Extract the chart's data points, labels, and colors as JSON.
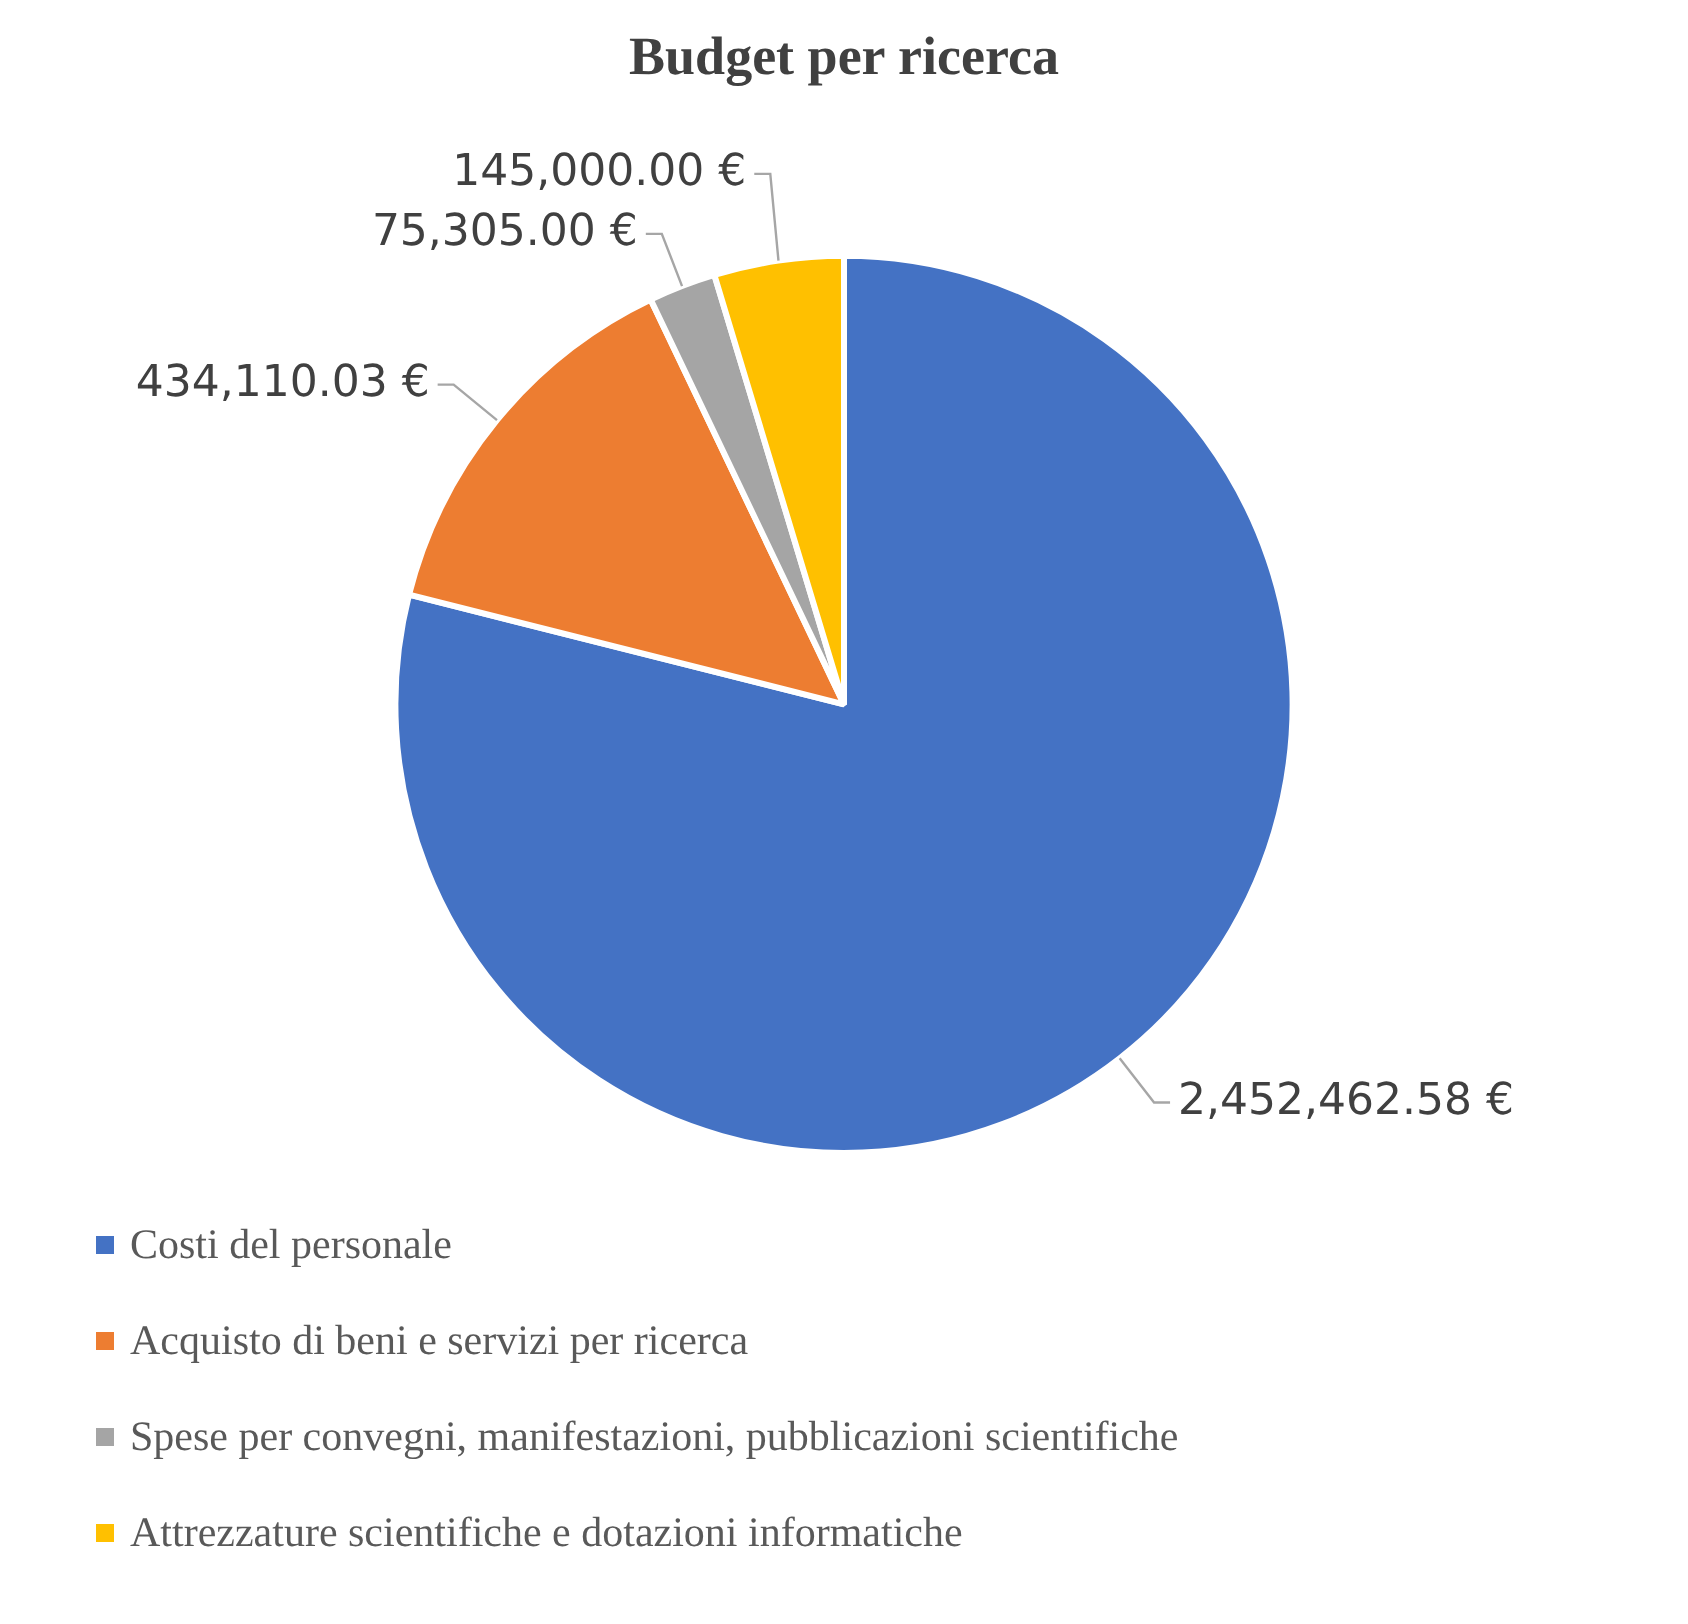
{
  "chart_data": {
    "type": "pie",
    "title": "Budget per ricerca",
    "categories": [
      "Costi del personale",
      "Acquisto di beni e servizi per ricerca",
      "Spese per convegni, manifestazioni, pubblicazioni scientifiche",
      "Attrezzature scientifiche e dotazioni informatiche"
    ],
    "values": [
      2452462.58,
      434110.03,
      75305.0,
      145000.0
    ],
    "colors": [
      "#4472c4",
      "#ed7d31",
      "#a5a5a5",
      "#ffc000"
    ],
    "value_labels": [
      "2,452,462.58 €",
      "434,110.03 €",
      "75,305.00 €",
      "145,000.00 €"
    ],
    "legend": "bottom"
  }
}
